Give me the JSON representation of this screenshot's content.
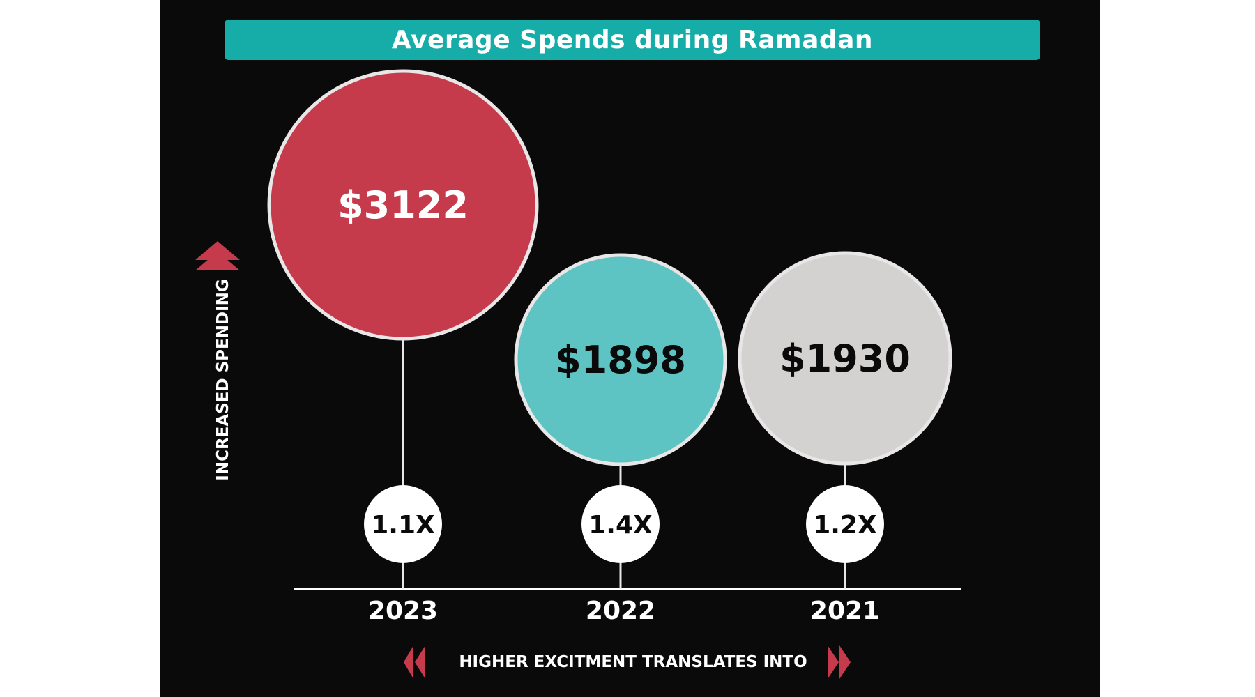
{
  "title": "Average Spends during Ramadan",
  "y_axis_label": "INCREASED SPENDING",
  "x_axis_label": "HIGHER EXCITMENT TRANSLATES INTO",
  "colors": {
    "background": "#0a0a0b",
    "title_bar": "#16aca8",
    "accent_red": "#c53b4b",
    "teal": "#5ec3c3",
    "grey": "#d4d1d1",
    "outline": "#e8e6e6",
    "axis": "#ffffff"
  },
  "icons": {
    "y_axis_arrow": "double-chevron-up-icon",
    "x_axis_left_arrow": "double-chevron-left-icon",
    "x_axis_right_arrow": "double-chevron-right-icon"
  },
  "chart_data": {
    "type": "bubble",
    "title": "Average Spends during Ramadan",
    "xlabel": "HIGHER EXCITMENT TRANSLATES INTO",
    "ylabel": "INCREASED SPENDING",
    "categories": [
      "2023",
      "2022",
      "2021"
    ],
    "values": [
      3122,
      1898,
      1930
    ],
    "value_labels": [
      "$3122",
      "$1898",
      "$1930"
    ],
    "multipliers": [
      "1.1X",
      "1.4X",
      "1.2X"
    ],
    "bubble_colors": [
      "#c53b4b",
      "#5ec3c3",
      "#d4d1d1"
    ],
    "value_text_colors": [
      "#ffffff",
      "#0a0a0b",
      "#0a0a0b"
    ]
  }
}
